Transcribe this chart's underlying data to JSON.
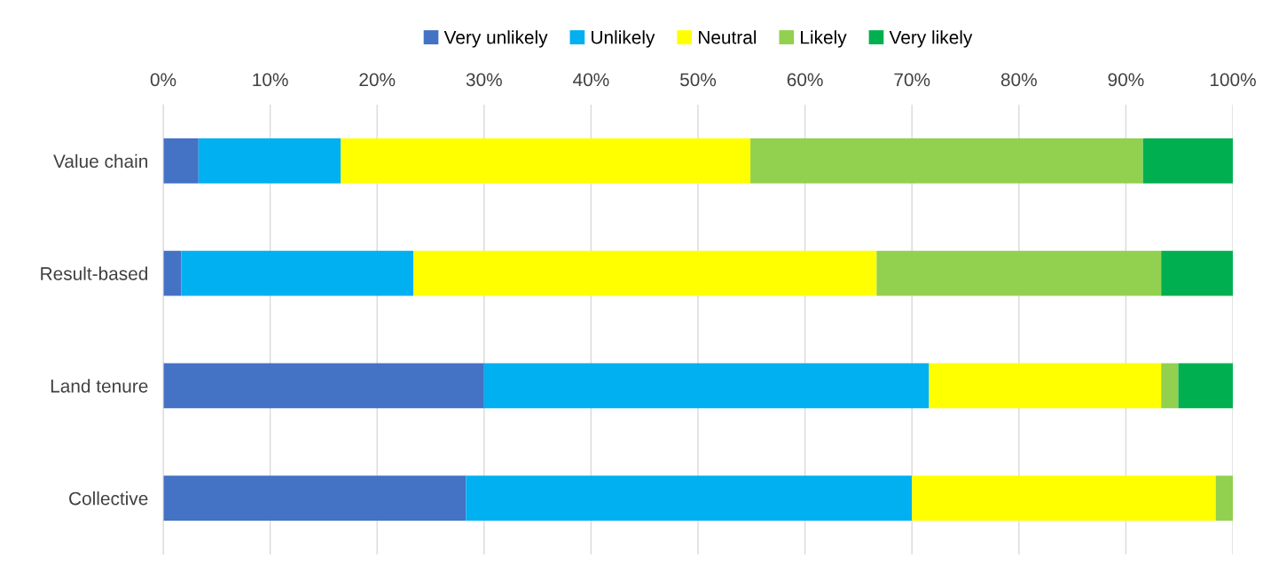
{
  "chart_data": {
    "type": "bar",
    "orientation": "horizontal",
    "stacked": true,
    "categories": [
      "Value chain",
      "Result-based",
      "Land tenure",
      "Collective"
    ],
    "series": [
      {
        "name": "Very unlikely",
        "color": "#4472c4",
        "values": [
          3.3,
          1.7,
          30.0,
          28.3
        ]
      },
      {
        "name": "Unlikely",
        "color": "#00b0f0",
        "values": [
          13.3,
          21.7,
          41.6,
          41.7
        ]
      },
      {
        "name": "Neutral",
        "color": "#ffff00",
        "values": [
          38.3,
          43.3,
          21.7,
          28.4
        ]
      },
      {
        "name": "Likely",
        "color": "#92d050",
        "values": [
          36.7,
          26.6,
          1.6,
          1.6
        ]
      },
      {
        "name": "Very likely",
        "color": "#00b050",
        "values": [
          8.4,
          6.7,
          5.1,
          0
        ]
      }
    ],
    "xlim": [
      0,
      100
    ],
    "xticks": [
      {
        "value": 0,
        "label": "0%"
      },
      {
        "value": 10,
        "label": "10%"
      },
      {
        "value": 20,
        "label": "20%"
      },
      {
        "value": 30,
        "label": "30%"
      },
      {
        "value": 40,
        "label": "40%"
      },
      {
        "value": 50,
        "label": "50%"
      },
      {
        "value": 60,
        "label": "60%"
      },
      {
        "value": 70,
        "label": "70%"
      },
      {
        "value": 80,
        "label": "80%"
      },
      {
        "value": 90,
        "label": "90%"
      },
      {
        "value": 100,
        "label": "100%"
      }
    ],
    "grid": "x",
    "legend": "top"
  }
}
